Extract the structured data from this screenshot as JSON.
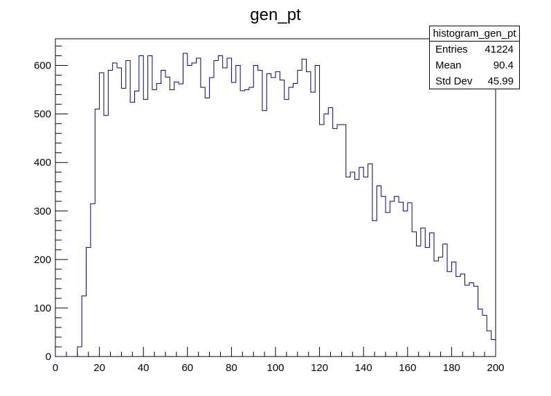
{
  "chart_data": {
    "type": "bar",
    "style": "step-histogram",
    "title": "gen_pt",
    "xlabel": "",
    "ylabel": "",
    "xlim": [
      0,
      200
    ],
    "ylim": [
      0,
      655
    ],
    "bin_width": 2,
    "x_ticks": [
      "0",
      "20",
      "40",
      "60",
      "80",
      "100",
      "120",
      "140",
      "160",
      "180",
      "200"
    ],
    "y_ticks": [
      "0",
      "100",
      "200",
      "300",
      "400",
      "500",
      "600"
    ],
    "grid": false,
    "line_color": "#000080",
    "bins": [
      {
        "x": 0,
        "y": 0
      },
      {
        "x": 2,
        "y": 0
      },
      {
        "x": 4,
        "y": 0
      },
      {
        "x": 6,
        "y": 0
      },
      {
        "x": 8,
        "y": 0
      },
      {
        "x": 10,
        "y": 20
      },
      {
        "x": 12,
        "y": 125
      },
      {
        "x": 14,
        "y": 225
      },
      {
        "x": 16,
        "y": 315
      },
      {
        "x": 18,
        "y": 510
      },
      {
        "x": 20,
        "y": 585
      },
      {
        "x": 22,
        "y": 497
      },
      {
        "x": 24,
        "y": 590
      },
      {
        "x": 26,
        "y": 605
      },
      {
        "x": 28,
        "y": 595
      },
      {
        "x": 30,
        "y": 553
      },
      {
        "x": 32,
        "y": 610
      },
      {
        "x": 34,
        "y": 524
      },
      {
        "x": 36,
        "y": 547
      },
      {
        "x": 38,
        "y": 620
      },
      {
        "x": 40,
        "y": 530
      },
      {
        "x": 42,
        "y": 620
      },
      {
        "x": 44,
        "y": 550
      },
      {
        "x": 46,
        "y": 563
      },
      {
        "x": 48,
        "y": 590
      },
      {
        "x": 50,
        "y": 576
      },
      {
        "x": 52,
        "y": 550
      },
      {
        "x": 54,
        "y": 566
      },
      {
        "x": 56,
        "y": 562
      },
      {
        "x": 58,
        "y": 625
      },
      {
        "x": 60,
        "y": 600
      },
      {
        "x": 62,
        "y": 605
      },
      {
        "x": 64,
        "y": 615
      },
      {
        "x": 66,
        "y": 555
      },
      {
        "x": 68,
        "y": 533
      },
      {
        "x": 70,
        "y": 575
      },
      {
        "x": 72,
        "y": 610
      },
      {
        "x": 74,
        "y": 620
      },
      {
        "x": 76,
        "y": 595
      },
      {
        "x": 78,
        "y": 615
      },
      {
        "x": 80,
        "y": 565
      },
      {
        "x": 82,
        "y": 600
      },
      {
        "x": 84,
        "y": 548
      },
      {
        "x": 86,
        "y": 550
      },
      {
        "x": 88,
        "y": 555
      },
      {
        "x": 90,
        "y": 600
      },
      {
        "x": 92,
        "y": 590
      },
      {
        "x": 94,
        "y": 507
      },
      {
        "x": 96,
        "y": 583
      },
      {
        "x": 98,
        "y": 575
      },
      {
        "x": 100,
        "y": 587
      },
      {
        "x": 102,
        "y": 570
      },
      {
        "x": 104,
        "y": 530
      },
      {
        "x": 106,
        "y": 555
      },
      {
        "x": 108,
        "y": 563
      },
      {
        "x": 110,
        "y": 590
      },
      {
        "x": 112,
        "y": 613
      },
      {
        "x": 114,
        "y": 587
      },
      {
        "x": 116,
        "y": 545
      },
      {
        "x": 118,
        "y": 600
      },
      {
        "x": 120,
        "y": 478
      },
      {
        "x": 122,
        "y": 500
      },
      {
        "x": 124,
        "y": 513
      },
      {
        "x": 126,
        "y": 470
      },
      {
        "x": 128,
        "y": 478
      },
      {
        "x": 130,
        "y": 478
      },
      {
        "x": 132,
        "y": 370
      },
      {
        "x": 134,
        "y": 380
      },
      {
        "x": 136,
        "y": 365
      },
      {
        "x": 138,
        "y": 390
      },
      {
        "x": 140,
        "y": 370
      },
      {
        "x": 142,
        "y": 397
      },
      {
        "x": 144,
        "y": 280
      },
      {
        "x": 146,
        "y": 352
      },
      {
        "x": 148,
        "y": 330
      },
      {
        "x": 150,
        "y": 297
      },
      {
        "x": 152,
        "y": 320
      },
      {
        "x": 154,
        "y": 330
      },
      {
        "x": 156,
        "y": 318
      },
      {
        "x": 158,
        "y": 300
      },
      {
        "x": 160,
        "y": 317
      },
      {
        "x": 162,
        "y": 257
      },
      {
        "x": 164,
        "y": 228
      },
      {
        "x": 166,
        "y": 265
      },
      {
        "x": 168,
        "y": 225
      },
      {
        "x": 170,
        "y": 255
      },
      {
        "x": 172,
        "y": 197
      },
      {
        "x": 174,
        "y": 205
      },
      {
        "x": 176,
        "y": 232
      },
      {
        "x": 178,
        "y": 175
      },
      {
        "x": 180,
        "y": 195
      },
      {
        "x": 182,
        "y": 165
      },
      {
        "x": 184,
        "y": 170
      },
      {
        "x": 186,
        "y": 147
      },
      {
        "x": 188,
        "y": 152
      },
      {
        "x": 190,
        "y": 145
      },
      {
        "x": 192,
        "y": 98
      },
      {
        "x": 194,
        "y": 85
      },
      {
        "x": 196,
        "y": 53
      },
      {
        "x": 198,
        "y": 35
      }
    ]
  },
  "stats": {
    "title": "histogram_gen_pt",
    "entries_label": "Entries",
    "entries_value": "41224",
    "mean_label": "Mean",
    "mean_value": "90.4",
    "stddev_label": "Std Dev",
    "stddev_value": "45.99"
  }
}
